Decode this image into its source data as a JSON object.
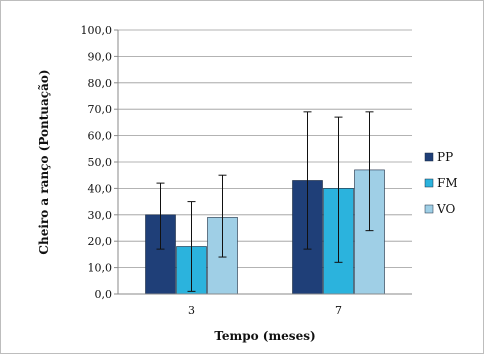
{
  "chart_data": {
    "type": "bar",
    "title": "",
    "xlabel": "Tempo (meses)",
    "ylabel": "Cheiro a ranço (Pontuação)",
    "categories": [
      "3",
      "7"
    ],
    "ylim": [
      0,
      100
    ],
    "yticks": [
      "0,0",
      "10,0",
      "20,0",
      "30,0",
      "40,0",
      "50,0",
      "60,0",
      "70,0",
      "80,0",
      "90,0",
      "100,0"
    ],
    "grid": true,
    "legend_position": "right",
    "series": [
      {
        "name": "PP",
        "color": "#1f3f78",
        "values": [
          30,
          43
        ],
        "error_low": [
          17,
          17
        ],
        "error_high": [
          42,
          69
        ]
      },
      {
        "name": "FM",
        "color": "#2bb3dd",
        "values": [
          18,
          40
        ],
        "error_low": [
          1,
          12
        ],
        "error_high": [
          35,
          67
        ]
      },
      {
        "name": "VO",
        "color": "#9fcfe6",
        "values": [
          29,
          47
        ],
        "error_low": [
          14,
          24
        ],
        "error_high": [
          45,
          69
        ]
      }
    ]
  }
}
